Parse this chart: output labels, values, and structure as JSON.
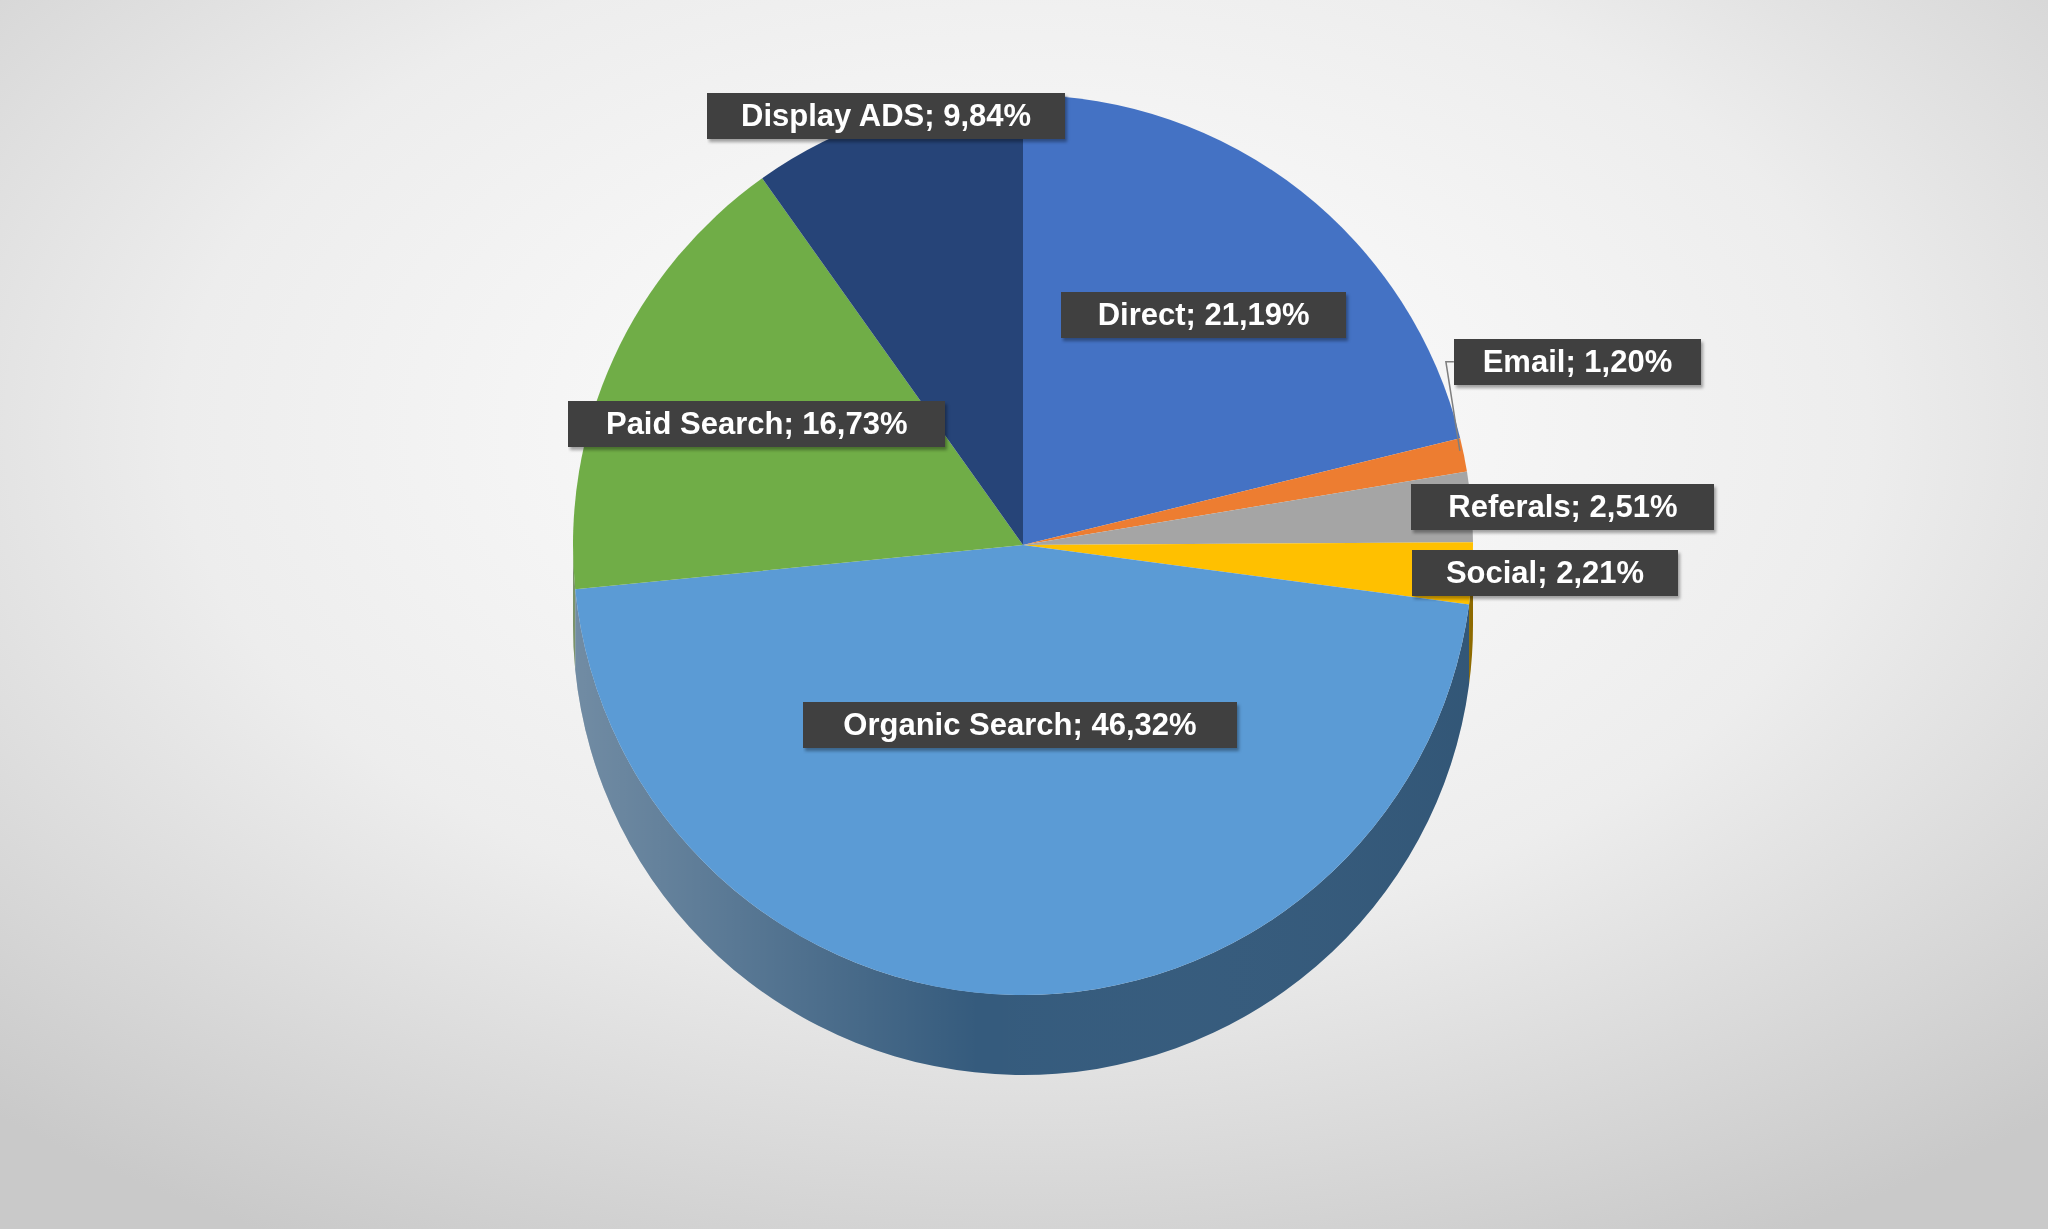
{
  "chart_data": {
    "type": "pie",
    "categories": [
      "Direct",
      "Email",
      "Referals",
      "Social",
      "Organic Search",
      "Paid Search",
      "Display ADS"
    ],
    "values": [
      21.19,
      1.2,
      2.51,
      2.21,
      46.32,
      16.73,
      9.84
    ],
    "colors": [
      "#4472c4",
      "#ed7d31",
      "#a5a5a5",
      "#ffc000",
      "#5b9bd5",
      "#70ad47",
      "#264478"
    ],
    "value_labels": [
      "21,19%",
      "1,20%",
      "2,51%",
      "2,21%",
      "46,32%",
      "16,73%",
      "9,84%"
    ]
  }
}
